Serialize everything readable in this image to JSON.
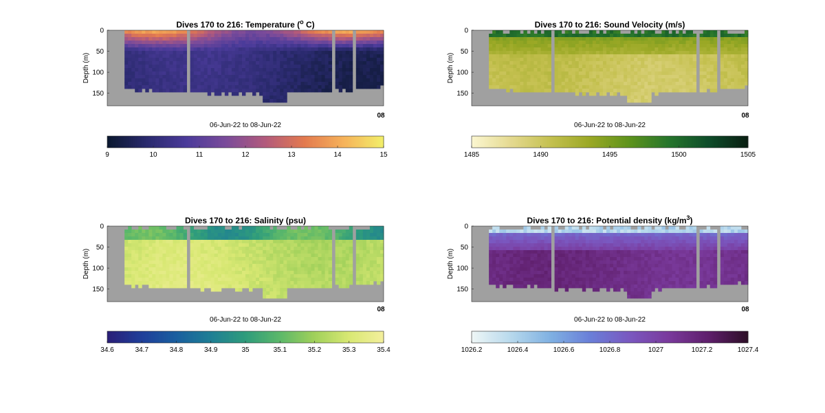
{
  "figure": {
    "background": "#ffffff",
    "plot_background": "#a0a0a0"
  },
  "chart_data": [
    {
      "type": "heatmap",
      "title": "Dives 170 to 216: Temperature (",
      "title_sup": "o",
      "title_suffix": " C)",
      "xlabel": "06-Jun-22 to 08-Jun-22",
      "ylabel": "Depth (m)",
      "yticks": [
        "0",
        "50",
        "100",
        "150"
      ],
      "ylim": [
        0,
        180
      ],
      "x_tick_label": "08",
      "colorbar": {
        "range": [
          9,
          15
        ],
        "ticks": [
          "9",
          "10",
          "11",
          "12",
          "13",
          "14",
          "15"
        ],
        "colormap": [
          "#0b1830",
          "#2a2a6e",
          "#4b3b9a",
          "#7a4b9a",
          "#b25a7c",
          "#e37a4f",
          "#f6b25a",
          "#f2ee6a"
        ]
      },
      "pattern": "temperature",
      "gaps": [
        0,
        0.03,
        0.25,
        0.26,
        0.85,
        0.88,
        0.93
      ]
    },
    {
      "type": "heatmap",
      "title": "Dives 170 to 216: Sound Velocity (m/s)",
      "xlabel": "06-Jun-22 to 08-Jun-22",
      "ylabel": "Depth (m)",
      "yticks": [
        "0",
        "50",
        "100",
        "150"
      ],
      "ylim": [
        0,
        180
      ],
      "x_tick_label": "08",
      "colorbar": {
        "range": [
          1485,
          1505
        ],
        "ticks": [
          "1485",
          "1490",
          "1495",
          "1500",
          "1505"
        ],
        "colormap": [
          "#fbf6d0",
          "#e4d98f",
          "#c4c04f",
          "#9aa825",
          "#5d931c",
          "#26752c",
          "#0e4d2a",
          "#0a1f12"
        ]
      },
      "pattern": "soundvelocity",
      "gaps": [
        0,
        0.03,
        0.25,
        0.26,
        0.85,
        0.88,
        0.93
      ]
    },
    {
      "type": "heatmap",
      "title": "Dives 170 to 216: Salinity (psu)",
      "xlabel": "06-Jun-22 to 08-Jun-22",
      "ylabel": "Depth (m)",
      "yticks": [
        "0",
        "50",
        "100",
        "150"
      ],
      "ylim": [
        0,
        180
      ],
      "x_tick_label": "08",
      "colorbar": {
        "range": [
          34.6,
          35.4
        ],
        "ticks": [
          "34.6",
          "34.7",
          "34.8",
          "34.9",
          "35",
          "35.1",
          "35.2",
          "35.3",
          "35.4"
        ],
        "colormap": [
          "#2a1f78",
          "#1f3f9a",
          "#1a5f9f",
          "#1f7f94",
          "#2f9c7c",
          "#5cb86a",
          "#a0d05a",
          "#d8e873",
          "#f3ef9c"
        ]
      },
      "pattern": "salinity",
      "gaps": [
        0,
        0.03,
        0.25,
        0.26,
        0.85,
        0.88,
        0.93
      ]
    },
    {
      "type": "heatmap",
      "title": "Dives 170 to 216: Potential density (kg/m",
      "title_sup": "3",
      "title_suffix": ")",
      "xlabel": "06-Jun-22 to 08-Jun-22",
      "ylabel": "Depth (m)",
      "yticks": [
        "0",
        "50",
        "100",
        "150"
      ],
      "ylim": [
        0,
        180
      ],
      "x_tick_label": "08",
      "colorbar": {
        "range": [
          1026.2,
          1027.4
        ],
        "ticks": [
          "1026.2",
          "1026.4",
          "1026.6",
          "1026.8",
          "1027",
          "1027.2",
          "1027.4"
        ],
        "colormap": [
          "#eef6f6",
          "#b6d8ec",
          "#7fb0e2",
          "#6a7fd8",
          "#7a58c0",
          "#7a3a9c",
          "#5f1f6c",
          "#2e0f28"
        ]
      },
      "pattern": "density",
      "gaps": [
        0,
        0.03,
        0.25,
        0.26,
        0.85,
        0.88,
        0.93
      ]
    }
  ]
}
